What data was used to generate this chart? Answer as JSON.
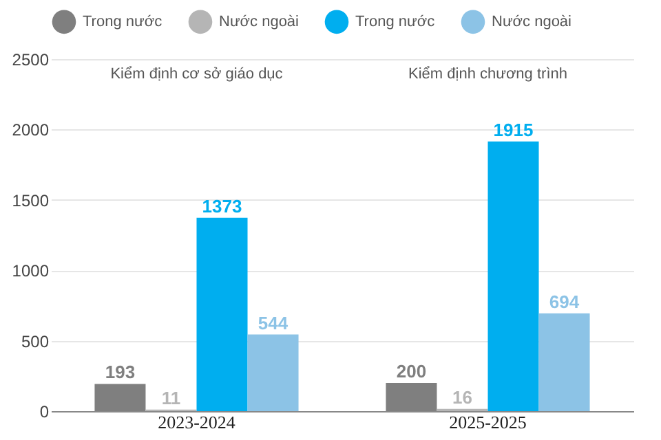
{
  "chart_data": {
    "type": "bar",
    "categories": [
      "2023-2024",
      "2025-2025"
    ],
    "series": [
      {
        "name": "Trong nước",
        "color": "#7f7f7f",
        "values": [
          193,
          200
        ]
      },
      {
        "name": "Nước ngoài",
        "color": "#b5b5b5",
        "values": [
          11,
          16
        ]
      },
      {
        "name": "Trong nước",
        "color": "#00aeef",
        "values": [
          1373,
          1915
        ]
      },
      {
        "name": "Nước ngoài",
        "color": "#8cc3e6",
        "values": [
          544,
          694
        ]
      }
    ],
    "ylim": [
      0,
      2500
    ],
    "yticks": [
      0,
      500,
      1000,
      1500,
      2000,
      2500
    ],
    "grid": "y",
    "legend": "top",
    "data_labels": true,
    "annotations": [
      "Kiểm định cơ sở giáo dục",
      "Kiểm định chương trình"
    ]
  }
}
